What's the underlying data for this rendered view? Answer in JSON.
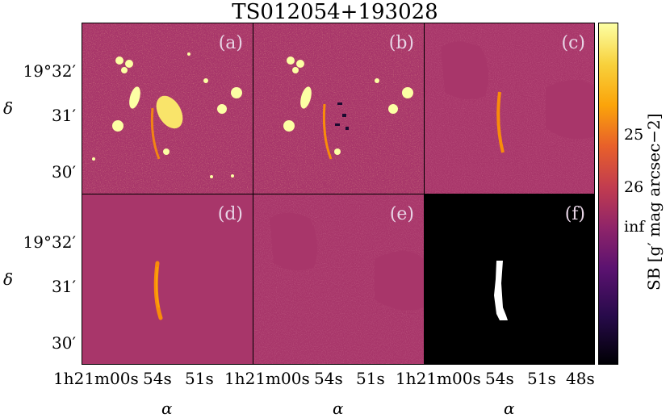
{
  "figure": {
    "title": "TS012054+193028",
    "panel_labels": [
      "(a)",
      "(b)",
      "(c)",
      "(d)",
      "(e)",
      "(f)"
    ],
    "y_axis": {
      "name": "δ",
      "ticks_top_row": [
        "19°32′",
        "31′",
        "30′"
      ],
      "ticks_bottom_row": [
        "19°32′",
        "31′",
        "30′"
      ]
    },
    "x_axis": {
      "name": "α",
      "ticks": [
        "1h21m00s",
        "54s",
        "51s",
        "1h21m00s",
        "54s",
        "51s",
        "1h21m00s",
        "54s",
        "51s",
        "48s"
      ]
    },
    "colorbar": {
      "label": "SB [g′ mag arcsec−2]",
      "ticks": [
        "25",
        "26",
        "inf"
      ],
      "colormap": "inferno"
    },
    "colors": {
      "background_magenta": "#a8366a",
      "bright_yellow": "#fcffa4",
      "orange": "#f98c0a",
      "mask_black": "#000000",
      "mask_white": "#ffffff",
      "label_color": "#e8d5e6"
    }
  }
}
